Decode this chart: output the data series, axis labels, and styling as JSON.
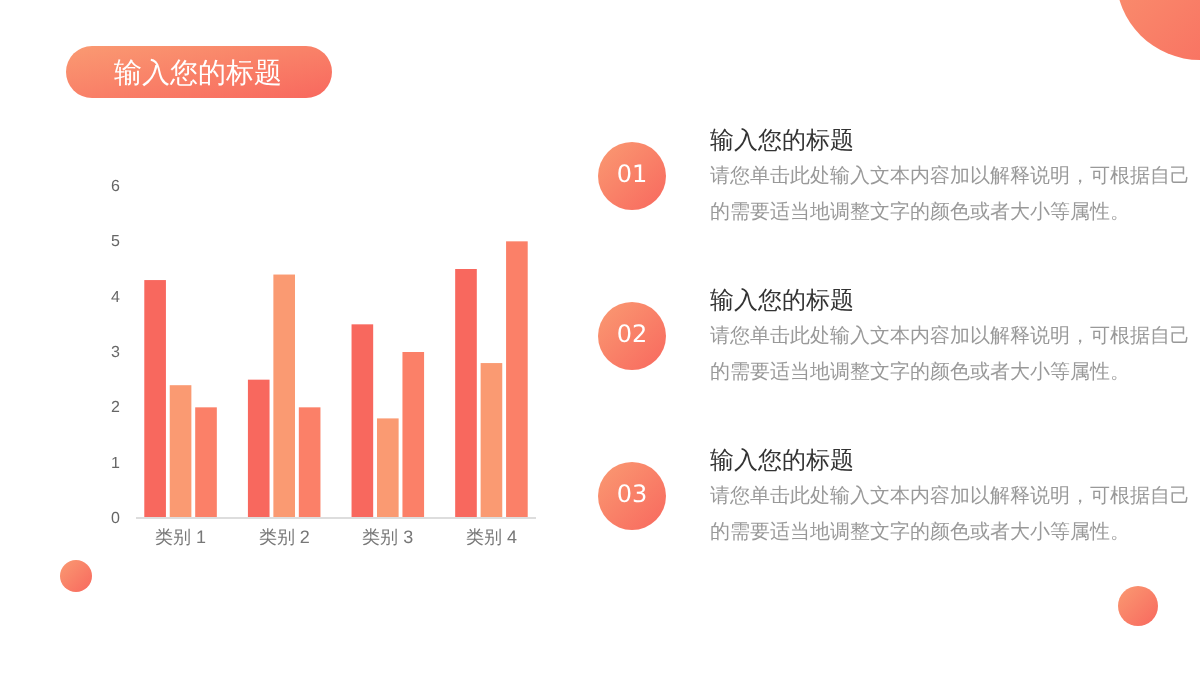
{
  "chart_data": {
    "type": "bar",
    "title": "输入您的标题",
    "categories": [
      "类别 1",
      "类别 2",
      "类别 3",
      "类别 4"
    ],
    "series": [
      {
        "color": "#f8685e",
        "values": [
          4.3,
          2.5,
          3.5,
          4.5
        ]
      },
      {
        "color": "#fa9a72",
        "values": [
          2.4,
          4.4,
          1.8,
          2.8
        ]
      },
      {
        "color": "#fb8068",
        "values": [
          2,
          2,
          3,
          5
        ]
      }
    ],
    "ylim": [
      0,
      6
    ],
    "yticks": [
      0,
      1,
      2,
      3,
      4,
      5,
      6
    ],
    "grid": false,
    "legend": false,
    "annotations": [
      "01",
      "输入您的标题",
      "请您单击此处输入文本内容加以解释说明，可根据自己的需要适当地调整文字的颜色或者大小等属性。",
      "02",
      "输入您的标题",
      "请您单击此处输入文本内容加以解释说明，可根据自己的需要适当地调整文字的颜色或者大小等属性。",
      "03",
      "输入您的标题",
      "请您单击此处输入文本内容加以解释说明，可根据自己的需要适当地调整文字的颜色或者大小等属性。"
    ]
  }
}
